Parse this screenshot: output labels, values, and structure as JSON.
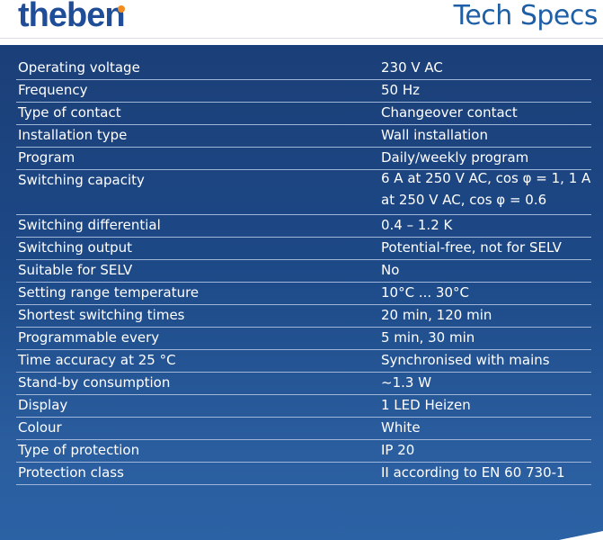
{
  "header": {
    "logo": "theben",
    "title": "Tech Specs"
  },
  "colors": {
    "brand_blue": "#1f4d98",
    "logo_dot_orange": "#f28c1e",
    "panel_blue": "#1d4987",
    "text_white": "#ffffff"
  },
  "specs": [
    {
      "label": "Operating voltage",
      "value": "230 V AC"
    },
    {
      "label": "Frequency",
      "value": "50 Hz"
    },
    {
      "label": "Type of contact",
      "value": "Changeover contact"
    },
    {
      "label": "Installation type",
      "value": "Wall installation"
    },
    {
      "label": "Program",
      "value": "Daily/weekly program"
    },
    {
      "label": "Switching capacity",
      "value": "6 A at 250 V AC, cos φ = 1, 1 A at 250 V AC, cos φ = 0.6"
    },
    {
      "label": "Switching differential",
      "value": "0.4 – 1.2 K"
    },
    {
      "label": "Switching output",
      "value": "Potential-free, not for SELV"
    },
    {
      "label": "Suitable for SELV",
      "value": "No"
    },
    {
      "label": "Setting range temperature",
      "value": "10°C ... 30°C"
    },
    {
      "label": "Shortest switching times",
      "value": "20 min, 120 min"
    },
    {
      "label": "Programmable every",
      "value": "5 min, 30 min"
    },
    {
      "label": "Time accuracy at 25 °C",
      "value": "Synchronised with mains"
    },
    {
      "label": "Stand-by consumption",
      "value": "~1.3 W"
    },
    {
      "label": "Display",
      "value": "1 LED Heizen"
    },
    {
      "label": "Colour",
      "value": "White"
    },
    {
      "label": "Type of protection",
      "value": "IP 20"
    },
    {
      "label": "Protection class",
      "value": "II according to EN 60 730-1"
    }
  ]
}
